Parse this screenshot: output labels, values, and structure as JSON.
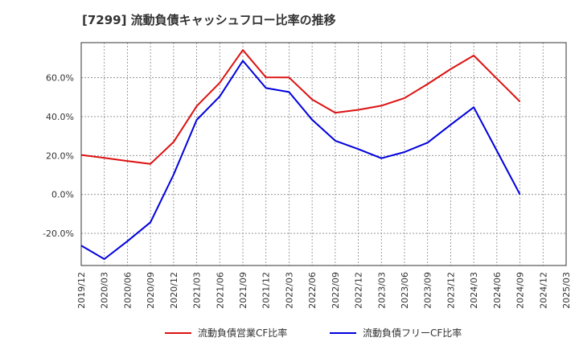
{
  "chart_data": {
    "type": "line",
    "title": "[7299]  流動負債キャッシュフロー比率の推移",
    "x": [
      "2019/12",
      "2020/03",
      "2020/06",
      "2020/09",
      "2020/12",
      "2021/03",
      "2021/06",
      "2021/09",
      "2021/12",
      "2022/03",
      "2022/06",
      "2022/09",
      "2022/12",
      "2023/03",
      "2023/06",
      "2023/09",
      "2023/12",
      "2024/03",
      "2024/06",
      "2024/09",
      "2024/12",
      "2025/03"
    ],
    "series": [
      {
        "name": "流動負債営業CF比率",
        "color": "#dd1111",
        "values": [
          20.3,
          18.8,
          17.2,
          15.7,
          27.0,
          45.4,
          57.4,
          74.2,
          60.2,
          60.1,
          48.8,
          42.0,
          43.5,
          45.6,
          49.5,
          56.7,
          64.4,
          71.4,
          59.5,
          47.7,
          null,
          null
        ]
      },
      {
        "name": "流動負債フリーCF比率",
        "color": "#0000dd",
        "values": [
          -26.3,
          -33.2,
          -24.0,
          -14.3,
          10.2,
          38.3,
          50.4,
          68.7,
          54.7,
          52.6,
          38.4,
          27.6,
          23.3,
          18.6,
          21.8,
          26.6,
          35.8,
          44.8,
          22.4,
          0.0,
          null,
          null
        ]
      }
    ],
    "y_ticks": [
      "60.0%",
      "40.0%",
      "20.0%",
      "0.0%",
      "-20.0%"
    ],
    "y_tick_values": [
      60,
      40,
      20,
      0,
      -20
    ],
    "ylim": [
      -36.5,
      78
    ],
    "grid": true,
    "legend": "bottom"
  }
}
